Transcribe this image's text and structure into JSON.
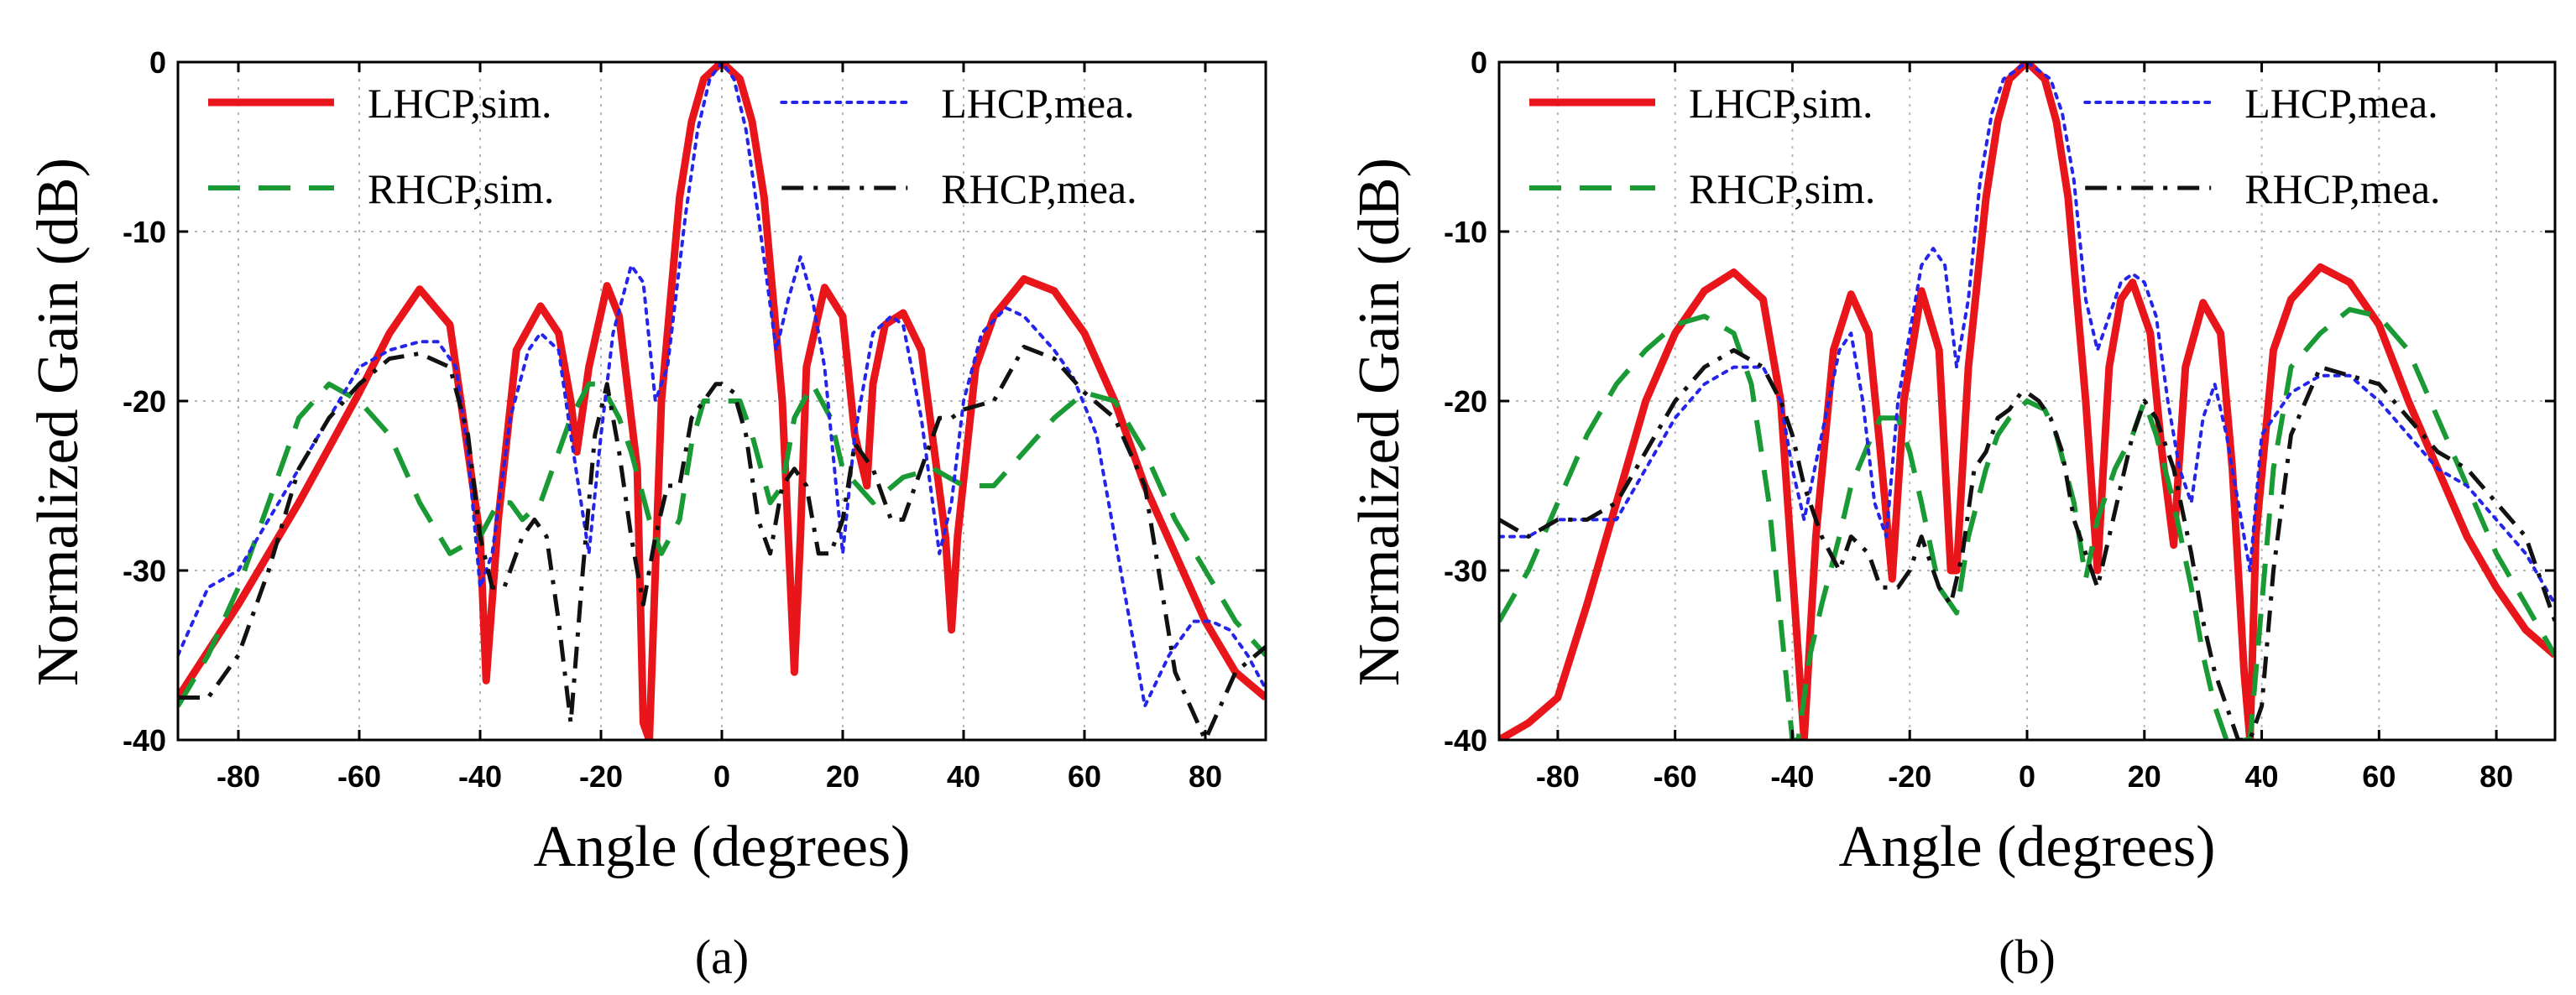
{
  "chart_data": [
    {
      "type": "line",
      "caption": "(a)",
      "xlabel": "Angle (degrees)",
      "ylabel": "Normalized Gain (dB)",
      "xlim": [
        -90,
        90
      ],
      "ylim": [
        -40,
        0
      ],
      "xticks": [
        -80,
        -60,
        -40,
        -20,
        0,
        20,
        40,
        60,
        80
      ],
      "yticks": [
        0,
        -10,
        -20,
        -30,
        -40
      ],
      "grid": true,
      "legend": "top",
      "series": [
        {
          "name": "LHCP,sim.",
          "color": "#e8161b",
          "style": "solid",
          "x": [
            -90,
            -80,
            -70,
            -60,
            -55,
            -50,
            -45,
            -40,
            -39,
            -37,
            -34,
            -30,
            -27,
            -25,
            -24,
            -22,
            -19,
            -17,
            -14,
            -13,
            -12,
            -10,
            -7,
            -5,
            -3,
            0,
            3,
            5,
            7,
            10,
            12,
            13,
            14,
            17,
            20,
            22,
            24,
            25,
            27,
            30,
            33,
            37,
            38,
            39,
            42,
            45,
            50,
            55,
            60,
            65,
            70,
            75,
            80,
            85,
            90
          ],
          "y": [
            -37.5,
            -32,
            -26,
            -19.5,
            -16,
            -13.4,
            -15.5,
            -28,
            -36.5,
            -27,
            -17,
            -14.4,
            -16,
            -20,
            -23,
            -18,
            -13.2,
            -15,
            -24,
            -39,
            -40,
            -20,
            -8,
            -3.5,
            -1,
            0,
            -1,
            -3.5,
            -8,
            -20,
            -36,
            -28,
            -18,
            -13.3,
            -15,
            -22,
            -25,
            -19,
            -15.5,
            -14.8,
            -17,
            -28,
            -33.5,
            -28,
            -18,
            -15,
            -12.8,
            -13.5,
            -16,
            -20,
            -25,
            -29,
            -33,
            -36,
            -37.5
          ]
        },
        {
          "name": "RHCP,sim.",
          "color": "#1a9a35",
          "style": "dashed",
          "x": [
            -90,
            -85,
            -80,
            -75,
            -70,
            -65,
            -60,
            -55,
            -50,
            -45,
            -40,
            -37,
            -35,
            -33,
            -30,
            -28,
            -25,
            -22,
            -20,
            -17,
            -15,
            -12,
            -10,
            -7,
            -5,
            -3,
            0,
            3,
            5,
            8,
            10,
            12,
            15,
            18,
            20,
            25,
            30,
            35,
            40,
            45,
            50,
            55,
            60,
            65,
            70,
            75,
            80,
            85,
            90
          ],
          "y": [
            -38,
            -35,
            -31,
            -26,
            -21,
            -19,
            -20,
            -22,
            -26,
            -29,
            -28,
            -26,
            -26,
            -27,
            -26,
            -24,
            -21,
            -19,
            -19,
            -21,
            -23,
            -27,
            -29,
            -27,
            -22.5,
            -20,
            -20,
            -20,
            -22,
            -26,
            -25,
            -21,
            -19,
            -21,
            -24,
            -26,
            -24.5,
            -24,
            -25,
            -25,
            -23,
            -21,
            -19.5,
            -20,
            -23,
            -27,
            -30,
            -33,
            -35
          ]
        },
        {
          "name": "LHCP,mea.",
          "color": "#2424ea",
          "style": "dotted",
          "x": [
            -90,
            -85,
            -80,
            -75,
            -70,
            -65,
            -60,
            -55,
            -50,
            -47,
            -44,
            -42,
            -40,
            -38,
            -35,
            -32,
            -30,
            -27,
            -25,
            -22,
            -20,
            -18,
            -15,
            -13,
            -11,
            -9,
            -6,
            -4,
            -2,
            0,
            2,
            4,
            6,
            9,
            11,
            13,
            15,
            17,
            20,
            22,
            25,
            28,
            30,
            33,
            36,
            38,
            40,
            43,
            47,
            50,
            55,
            58,
            62,
            66,
            70,
            74,
            78,
            81,
            84,
            87,
            90
          ],
          "y": [
            -35,
            -31,
            -30,
            -27,
            -24,
            -21,
            -18,
            -17,
            -16.5,
            -16.5,
            -18,
            -23,
            -31,
            -29,
            -21,
            -17,
            -16,
            -17,
            -22,
            -29,
            -22,
            -16,
            -12,
            -13,
            -20,
            -18,
            -9,
            -4,
            -1,
            0,
            -1,
            -4,
            -9,
            -17,
            -14,
            -11.5,
            -14,
            -18,
            -29,
            -22,
            -16,
            -15,
            -15.5,
            -21,
            -29,
            -26,
            -20,
            -16,
            -14.5,
            -15,
            -17,
            -18.5,
            -22,
            -30,
            -38,
            -35,
            -33,
            -33,
            -33.5,
            -35,
            -37
          ]
        },
        {
          "name": "RHCP,mea.",
          "color": "#111111",
          "style": "dashdot",
          "x": [
            -90,
            -85,
            -80,
            -75,
            -70,
            -65,
            -60,
            -55,
            -50,
            -45,
            -42,
            -40,
            -38,
            -36,
            -33,
            -31,
            -29,
            -27,
            -25,
            -23,
            -21,
            -19,
            -17,
            -15,
            -13,
            -11,
            -9,
            -7,
            -5,
            -3,
            -1,
            0,
            2,
            4,
            6,
            8,
            10,
            12,
            14,
            16,
            18,
            20,
            22,
            25,
            28,
            30,
            33,
            36,
            38,
            40,
            45,
            50,
            55,
            60,
            65,
            70,
            75,
            80,
            85,
            90
          ],
          "y": [
            -37.5,
            -37.5,
            -35,
            -30,
            -24,
            -21,
            -19,
            -17.5,
            -17.2,
            -18,
            -22,
            -28,
            -31,
            -31,
            -28,
            -27,
            -28,
            -33,
            -39,
            -30,
            -22,
            -19,
            -23,
            -28,
            -32,
            -28,
            -25,
            -25,
            -21,
            -20,
            -19,
            -19,
            -19.5,
            -22,
            -27,
            -29,
            -25,
            -24,
            -25,
            -29,
            -29,
            -27,
            -22.5,
            -24,
            -27,
            -27,
            -24,
            -21,
            -21,
            -20.5,
            -20,
            -16.8,
            -17.5,
            -19.5,
            -21,
            -25,
            -36,
            -40,
            -36,
            -34.5
          ]
        }
      ]
    },
    {
      "type": "line",
      "caption": "(b)",
      "xlabel": "Angle (degrees)",
      "ylabel": "Normalized Gain (dB)",
      "xlim": [
        -90,
        90
      ],
      "ylim": [
        -40,
        0
      ],
      "xticks": [
        -80,
        -60,
        -40,
        -20,
        0,
        20,
        40,
        60,
        80
      ],
      "yticks": [
        0,
        -10,
        -20,
        -30,
        -40
      ],
      "grid": true,
      "legend": "top",
      "series": [
        {
          "name": "LHCP,sim.",
          "color": "#e8161b",
          "style": "solid",
          "x": [
            -90,
            -85,
            -80,
            -75,
            -70,
            -65,
            -60,
            -55,
            -50,
            -45,
            -42,
            -40,
            -38,
            -36,
            -33,
            -30,
            -27,
            -25,
            -23,
            -21,
            -18,
            -15,
            -13,
            -12,
            -10,
            -7,
            -5,
            -3,
            0,
            3,
            5,
            7,
            10,
            12,
            14,
            16,
            18,
            21,
            23,
            25,
            27,
            30,
            33,
            35,
            37,
            38,
            39,
            42,
            45,
            50,
            55,
            60,
            65,
            70,
            75,
            80,
            85,
            90
          ],
          "y": [
            -40,
            -39,
            -37.5,
            -32,
            -26,
            -20,
            -16,
            -13.5,
            -12.4,
            -14,
            -20,
            -30,
            -40,
            -28,
            -17,
            -13.7,
            -16,
            -23,
            -30.5,
            -20,
            -13.5,
            -17,
            -30,
            -30,
            -18,
            -8,
            -3.5,
            -1,
            0,
            -1,
            -3.5,
            -8,
            -20,
            -30,
            -18,
            -14,
            -13,
            -16,
            -23,
            -28.5,
            -18,
            -14.2,
            -16,
            -24,
            -36,
            -40,
            -28,
            -17,
            -14,
            -12.1,
            -13,
            -15.5,
            -20,
            -24,
            -28,
            -31,
            -33.5,
            -35
          ]
        },
        {
          "name": "RHCP,sim.",
          "color": "#1a9a35",
          "style": "dashed",
          "x": [
            -90,
            -85,
            -80,
            -75,
            -70,
            -65,
            -60,
            -55,
            -50,
            -47,
            -44,
            -42,
            -40,
            -39,
            -37,
            -35,
            -32,
            -30,
            -27,
            -25,
            -22,
            -20,
            -18,
            -15,
            -12,
            -10,
            -7,
            -5,
            -3,
            0,
            3,
            5,
            8,
            10,
            12,
            15,
            18,
            20,
            22,
            25,
            28,
            30,
            32,
            34,
            36,
            38,
            40,
            42,
            45,
            50,
            55,
            60,
            65,
            70,
            75,
            80,
            85,
            90
          ],
          "y": [
            -33,
            -30,
            -26,
            -22,
            -19,
            -17,
            -15.5,
            -15,
            -16,
            -19,
            -26,
            -33,
            -40,
            -40,
            -35,
            -32,
            -28,
            -25,
            -22.5,
            -21,
            -21,
            -23,
            -26,
            -31,
            -32.5,
            -28,
            -24,
            -22,
            -21,
            -20,
            -20.5,
            -22,
            -26,
            -30.5,
            -27,
            -24,
            -22,
            -20,
            -22,
            -26,
            -31,
            -35,
            -38,
            -40,
            -40,
            -40,
            -32,
            -24,
            -18,
            -16,
            -14.6,
            -15,
            -17,
            -21,
            -25,
            -29,
            -32,
            -35
          ]
        },
        {
          "name": "LHCP,mea.",
          "color": "#2424ea",
          "style": "dotted",
          "x": [
            -90,
            -85,
            -80,
            -75,
            -70,
            -65,
            -60,
            -55,
            -50,
            -45,
            -42,
            -40,
            -38,
            -35,
            -32,
            -30,
            -28,
            -26,
            -24,
            -22,
            -20,
            -18,
            -16,
            -14,
            -12,
            -10,
            -8,
            -6,
            -4,
            -2,
            0,
            2,
            4,
            6,
            8,
            10,
            12,
            14,
            16,
            18,
            20,
            22,
            24,
            26,
            28,
            30,
            32,
            34,
            36,
            38,
            40,
            45,
            50,
            55,
            60,
            65,
            70,
            75,
            80,
            85,
            90
          ],
          "y": [
            -28,
            -28,
            -27,
            -27,
            -27,
            -24,
            -21,
            -19,
            -18,
            -18,
            -20,
            -24,
            -27,
            -22,
            -17,
            -16,
            -20,
            -26,
            -28,
            -20,
            -16,
            -12,
            -11,
            -12,
            -18,
            -14,
            -7,
            -3,
            -1,
            -0.5,
            0,
            -0.5,
            -1,
            -3,
            -7,
            -14,
            -17,
            -15,
            -13,
            -12.5,
            -13,
            -15,
            -20,
            -24,
            -26,
            -21,
            -19,
            -22,
            -26,
            -30,
            -22,
            -19.5,
            -18.5,
            -18.5,
            -20,
            -22,
            -24,
            -25,
            -27,
            -29,
            -32
          ]
        },
        {
          "name": "RHCP,mea.",
          "color": "#111111",
          "style": "dashdot",
          "x": [
            -90,
            -85,
            -80,
            -75,
            -70,
            -65,
            -60,
            -55,
            -50,
            -45,
            -42,
            -40,
            -38,
            -35,
            -32,
            -30,
            -27,
            -25,
            -22,
            -20,
            -18,
            -15,
            -13,
            -11,
            -9,
            -7,
            -5,
            -3,
            -1,
            0,
            2,
            4,
            6,
            8,
            10,
            12,
            14,
            16,
            18,
            20,
            22,
            25,
            28,
            30,
            32,
            34,
            36,
            38,
            40,
            42,
            45,
            50,
            55,
            60,
            65,
            70,
            75,
            80,
            85,
            90
          ],
          "y": [
            -27,
            -28,
            -27,
            -27,
            -26,
            -23,
            -20,
            -18,
            -17,
            -18,
            -20,
            -22,
            -25,
            -28,
            -30,
            -28,
            -29,
            -31,
            -31,
            -30,
            -28,
            -31,
            -32,
            -29,
            -24,
            -23,
            -21,
            -20.5,
            -19.5,
            -19.5,
            -20,
            -21,
            -23,
            -27,
            -29,
            -31,
            -28,
            -25,
            -22,
            -20,
            -21,
            -24,
            -29,
            -33,
            -36,
            -38,
            -40,
            -40,
            -38,
            -30,
            -22,
            -18,
            -18.5,
            -19,
            -21,
            -23,
            -24,
            -26,
            -28,
            -33
          ]
        }
      ]
    }
  ]
}
